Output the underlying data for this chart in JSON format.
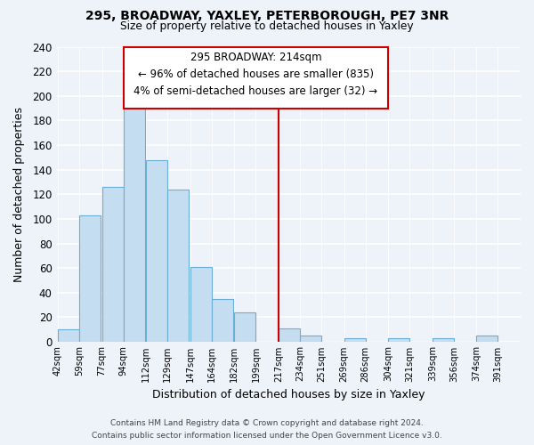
{
  "title": "295, BROADWAY, YAXLEY, PETERBOROUGH, PE7 3NR",
  "subtitle": "Size of property relative to detached houses in Yaxley",
  "xlabel": "Distribution of detached houses by size in Yaxley",
  "ylabel": "Number of detached properties",
  "bin_labels": [
    "42sqm",
    "59sqm",
    "77sqm",
    "94sqm",
    "112sqm",
    "129sqm",
    "147sqm",
    "164sqm",
    "182sqm",
    "199sqm",
    "217sqm",
    "234sqm",
    "251sqm",
    "269sqm",
    "286sqm",
    "304sqm",
    "321sqm",
    "339sqm",
    "356sqm",
    "374sqm",
    "391sqm"
  ],
  "bin_edges": [
    42,
    59,
    77,
    94,
    112,
    129,
    147,
    164,
    182,
    199,
    217,
    234,
    251,
    269,
    286,
    304,
    321,
    339,
    356,
    374,
    391
  ],
  "counts": [
    10,
    103,
    126,
    199,
    148,
    124,
    61,
    35,
    24,
    0,
    11,
    5,
    0,
    3,
    0,
    3,
    0,
    3,
    0,
    5
  ],
  "bar_color": "#c5ddf0",
  "bar_edge_color": "#6aaed6",
  "marker_line_color": "#cc0000",
  "box_edge_color": "#cc0000",
  "marker_label": "295 BROADWAY: 214sqm",
  "annotation_line1": "← 96% of detached houses are smaller (835)",
  "annotation_line2": "4% of semi-detached houses are larger (32) →",
  "ylim": [
    0,
    240
  ],
  "yticks": [
    0,
    20,
    40,
    60,
    80,
    100,
    120,
    140,
    160,
    180,
    200,
    220,
    240
  ],
  "footer_line1": "Contains HM Land Registry data © Crown copyright and database right 2024.",
  "footer_line2": "Contains public sector information licensed under the Open Government Licence v3.0.",
  "background_color": "#eef2f9",
  "grid_color": "#ffffff",
  "spine_color": "#b0b8c8"
}
